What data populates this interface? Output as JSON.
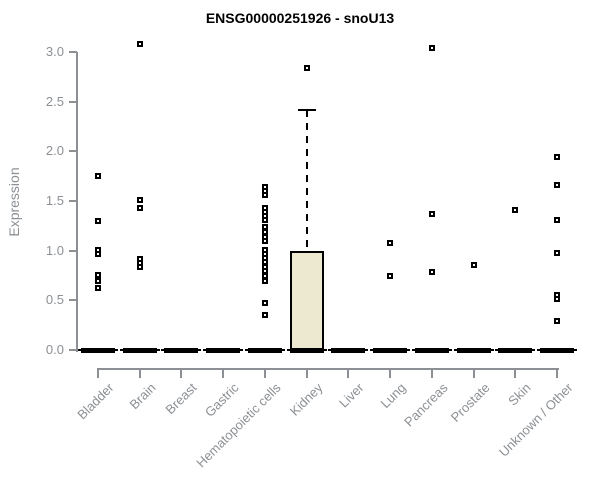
{
  "chart_data": {
    "type": "boxplot",
    "title": "ENSG00000251926 - snoU13",
    "xlabel": "",
    "ylabel": "Expression",
    "ylim": [
      0,
      3.0
    ],
    "y_ticks": [
      0,
      0.5,
      1.0,
      1.5,
      2.0,
      2.5,
      3.0
    ],
    "grid": false,
    "legend": "none",
    "categories": [
      "Bladder",
      "Brain",
      "Breast",
      "Gastric",
      "Hematopoietic cells",
      "Kidney",
      "Liver",
      "Lung",
      "Pancreas",
      "Prostate",
      "Skin",
      "Unknown / Other"
    ],
    "groups": [
      {
        "label": "Bladder",
        "median": 0,
        "q1": 0,
        "q3": 0,
        "whisker_low": 0,
        "whisker_high": 0,
        "points": [
          1.75,
          1.3,
          1.01,
          0.97,
          0.76,
          0.69,
          0.62
        ]
      },
      {
        "label": "Brain",
        "median": 0,
        "q1": 0,
        "q3": 0,
        "whisker_low": 0,
        "whisker_high": 0,
        "points": [
          3.08,
          1.51,
          1.43,
          0.92,
          0.88,
          0.84
        ]
      },
      {
        "label": "Breast",
        "median": 0,
        "q1": 0,
        "q3": 0,
        "whisker_low": 0,
        "whisker_high": 0,
        "points": []
      },
      {
        "label": "Gastric",
        "median": 0,
        "q1": 0,
        "q3": 0,
        "whisker_low": 0,
        "whisker_high": 0,
        "points": []
      },
      {
        "label": "Hematopoietic cells",
        "median": 0,
        "q1": 0,
        "q3": 0,
        "whisker_low": 0,
        "whisker_high": 0,
        "points": [
          1.64,
          1.6,
          1.56,
          1.43,
          1.39,
          1.35,
          1.31,
          1.24,
          1.19,
          1.14,
          1.1,
          1.01,
          0.97,
          0.93,
          0.89,
          0.84,
          0.8,
          0.75,
          0.69,
          0.47,
          0.35
        ]
      },
      {
        "label": "Kidney",
        "median": 0,
        "q1": 0,
        "q3": 1.0,
        "whisker_low": 0,
        "whisker_high": 2.42,
        "points": [
          2.84
        ]
      },
      {
        "label": "Liver",
        "median": 0,
        "q1": 0,
        "q3": 0,
        "whisker_low": 0,
        "whisker_high": 0,
        "points": []
      },
      {
        "label": "Lung",
        "median": 0,
        "q1": 0,
        "q3": 0,
        "whisker_low": 0,
        "whisker_high": 0,
        "points": [
          1.08,
          0.75
        ]
      },
      {
        "label": "Pancreas",
        "median": 0,
        "q1": 0,
        "q3": 0,
        "whisker_low": 0,
        "whisker_high": 0,
        "points": [
          3.04,
          1.37,
          0.79
        ]
      },
      {
        "label": "Prostate",
        "median": 0,
        "q1": 0,
        "q3": 0,
        "whisker_low": 0,
        "whisker_high": 0,
        "points": [
          0.86
        ]
      },
      {
        "label": "Skin",
        "median": 0,
        "q1": 0,
        "q3": 0,
        "whisker_low": 0,
        "whisker_high": 0,
        "points": [
          1.41
        ]
      },
      {
        "label": "Unknown / Other",
        "median": 0,
        "q1": 0,
        "q3": 0,
        "whisker_low": 0,
        "whisker_high": 0,
        "points": [
          1.94,
          1.66,
          1.31,
          0.98,
          0.55,
          0.51,
          0.29
        ]
      }
    ],
    "colors": {
      "box_fill": "#EDE8D0",
      "box_border": "#000000",
      "median": "#000000",
      "point": "#000000",
      "axis": "#8C9094",
      "tick_text": "#8C9094",
      "title_text": "#000000",
      "background": "#FFFFFF"
    }
  }
}
